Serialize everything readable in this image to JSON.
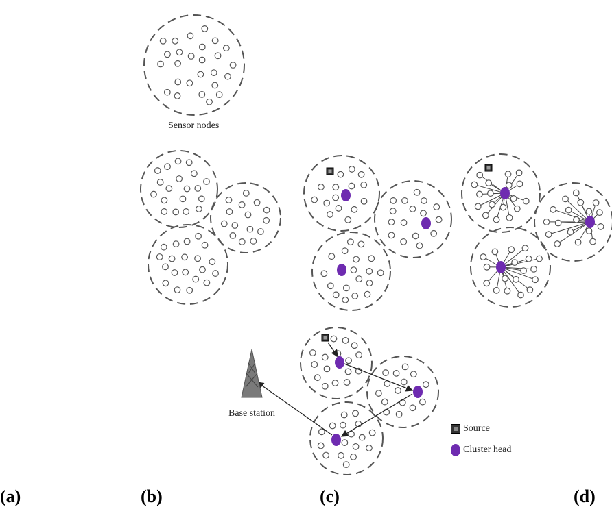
{
  "captions": {
    "sensor_nodes": "Sensor nodes",
    "base_station": "Base station"
  },
  "legend": {
    "source": "Source",
    "cluster_head": "Cluster head"
  },
  "panel_labels": {
    "a": "(a)",
    "b": "(b)",
    "c": "(c)",
    "d": "(d)"
  },
  "colors": {
    "cluster_head": "#6e2bb0",
    "source": "#333333",
    "node_stroke": "#555555",
    "cluster_boundary": "#555555",
    "base_station": "#777777"
  }
}
